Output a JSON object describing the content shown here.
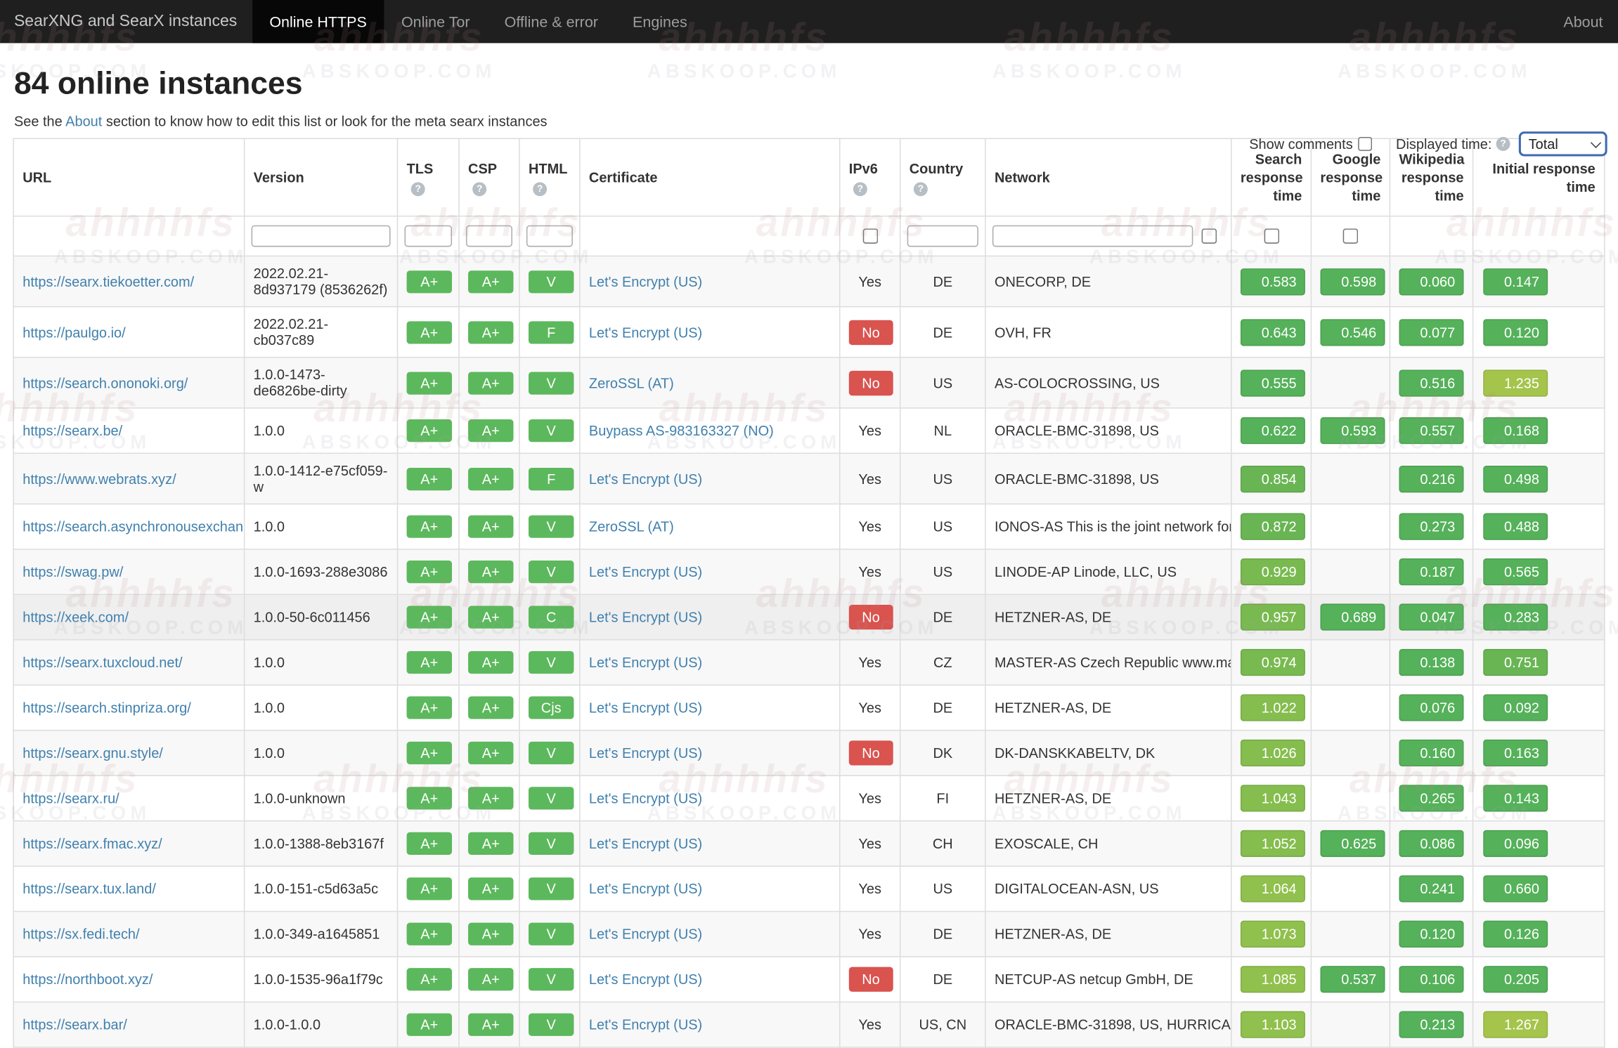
{
  "navbar": {
    "brand": "SearXNG and SearX instances",
    "tabs": [
      {
        "label": "Online HTTPS",
        "active": true
      },
      {
        "label": "Online Tor",
        "active": false
      },
      {
        "label": "Offline & error",
        "active": false
      },
      {
        "label": "Engines",
        "active": false
      }
    ],
    "about": "About"
  },
  "controls": {
    "show_comments_label": "Show comments",
    "displayed_time_label": "Displayed time:",
    "time_select_value": "Total"
  },
  "header": {
    "title": "84 online instances",
    "subtitle_pre": "See the ",
    "subtitle_link": "About",
    "subtitle_post": " section to know how to edit this list or look for the meta searx instances"
  },
  "watermark": {
    "line1": "ahhhhfs",
    "line2": "ABSKOOP.COM"
  },
  "table": {
    "columns": [
      {
        "label": "URL",
        "info": false
      },
      {
        "label": "Version",
        "info": false
      },
      {
        "label": "TLS",
        "info": true
      },
      {
        "label": "CSP",
        "info": true
      },
      {
        "label": "HTML",
        "info": true
      },
      {
        "label": "Certificate",
        "info": false
      },
      {
        "label": "IPv6",
        "info": true
      },
      {
        "label": "Country",
        "info": true
      },
      {
        "label": "Network",
        "info": false
      },
      {
        "label": "Search response time",
        "info": false
      },
      {
        "label": "Google response time",
        "info": false
      },
      {
        "label": "Wikipedia response time",
        "info": false
      },
      {
        "label": "Initial response time",
        "info": false
      }
    ],
    "status_colors": {
      "green": "#55b15a",
      "green_mid": "#69b554",
      "green_light": "#79ba50",
      "yellow_green": "#85bd4e",
      "yellow_green2": "#90c04d",
      "lime": "#a4c44b",
      "red": "#d9534f",
      "grade_green": "#5cb85c"
    },
    "rows": [
      {
        "url": "https://searx.tiekoetter.com/",
        "version": "2022.02.21-8d937179 (8536262f)",
        "tls": "A+",
        "csp": "A+",
        "html": "V",
        "cert": "Let's Encrypt (US)",
        "ipv6": "Yes",
        "country": "DE",
        "network": "ONECORP, DE",
        "times": {
          "search": {
            "v": "0.583",
            "c": "#55b15a"
          },
          "google": {
            "v": "0.598",
            "c": "#55b15a"
          },
          "wikipedia": {
            "v": "0.060",
            "c": "#55b15a"
          },
          "initial": {
            "v": "0.147",
            "c": "#55b15a"
          }
        }
      },
      {
        "url": "https://paulgo.io/",
        "version": "2022.02.21-cb037c89",
        "tls": "A+",
        "csp": "A+",
        "html": "F",
        "cert": "Let's Encrypt (US)",
        "ipv6": "No",
        "country": "DE",
        "network": "OVH, FR",
        "times": {
          "search": {
            "v": "0.643",
            "c": "#55b15a"
          },
          "google": {
            "v": "0.546",
            "c": "#55b15a"
          },
          "wikipedia": {
            "v": "0.077",
            "c": "#55b15a"
          },
          "initial": {
            "v": "0.120",
            "c": "#55b15a"
          }
        }
      },
      {
        "url": "https://search.ononoki.org/",
        "version": "1.0.0-1473-de6826be-dirty",
        "tls": "A+",
        "csp": "A+",
        "html": "V",
        "cert": "ZeroSSL (AT)",
        "ipv6": "No",
        "country": "US",
        "network": "AS-COLOCROSSING, US",
        "times": {
          "search": {
            "v": "0.555",
            "c": "#55b15a"
          },
          "wikipedia": {
            "v": "0.516",
            "c": "#55b15a"
          },
          "initial": {
            "v": "1.235",
            "c": "#a4c44b"
          }
        }
      },
      {
        "url": "https://searx.be/",
        "version": "1.0.0",
        "tls": "A+",
        "csp": "A+",
        "html": "V",
        "cert": "Buypass AS-983163327 (NO)",
        "ipv6": "Yes",
        "country": "NL",
        "network": "ORACLE-BMC-31898, US",
        "times": {
          "search": {
            "v": "0.622",
            "c": "#55b15a"
          },
          "google": {
            "v": "0.593",
            "c": "#55b15a"
          },
          "wikipedia": {
            "v": "0.557",
            "c": "#55b15a"
          },
          "initial": {
            "v": "0.168",
            "c": "#55b15a"
          }
        }
      },
      {
        "url": "https://www.webrats.xyz/",
        "version": "1.0.0-1412-e75cf059-w",
        "tls": "A+",
        "csp": "A+",
        "html": "F",
        "cert": "Let's Encrypt (US)",
        "ipv6": "Yes",
        "country": "US",
        "network": "ORACLE-BMC-31898, US",
        "times": {
          "search": {
            "v": "0.854",
            "c": "#69b554"
          },
          "wikipedia": {
            "v": "0.216",
            "c": "#55b15a"
          },
          "initial": {
            "v": "0.498",
            "c": "#55b15a"
          }
        }
      },
      {
        "url": "https://search.asynchronousexchan...",
        "version": "1.0.0",
        "tls": "A+",
        "csp": "A+",
        "html": "V",
        "cert": "ZeroSSL (AT)",
        "ipv6": "Yes",
        "country": "US",
        "network": "IONOS-AS This is the joint network for...",
        "times": {
          "search": {
            "v": "0.872",
            "c": "#69b554"
          },
          "wikipedia": {
            "v": "0.273",
            "c": "#55b15a"
          },
          "initial": {
            "v": "0.488",
            "c": "#55b15a"
          }
        }
      },
      {
        "url": "https://swag.pw/",
        "version": "1.0.0-1693-288e3086",
        "tls": "A+",
        "csp": "A+",
        "html": "V",
        "cert": "Let's Encrypt (US)",
        "ipv6": "Yes",
        "country": "US",
        "network": "LINODE-AP Linode, LLC, US",
        "times": {
          "search": {
            "v": "0.929",
            "c": "#79ba50"
          },
          "wikipedia": {
            "v": "0.187",
            "c": "#55b15a"
          },
          "initial": {
            "v": "0.565",
            "c": "#55b15a"
          }
        }
      },
      {
        "url": "https://xeek.com/",
        "version": "1.0.0-50-6c011456",
        "tls": "A+",
        "csp": "A+",
        "html": "C",
        "cert": "Let's Encrypt (US)",
        "ipv6": "No",
        "country": "DE",
        "network": "HETZNER-AS, DE",
        "highlight": true,
        "times": {
          "search": {
            "v": "0.957",
            "c": "#79ba50"
          },
          "google": {
            "v": "0.689",
            "c": "#55b15a"
          },
          "wikipedia": {
            "v": "0.047",
            "c": "#55b15a"
          },
          "initial": {
            "v": "0.283",
            "c": "#55b15a"
          }
        }
      },
      {
        "url": "https://searx.tuxcloud.net/",
        "version": "1.0.0",
        "tls": "A+",
        "csp": "A+",
        "html": "V",
        "cert": "Let's Encrypt (US)",
        "ipv6": "Yes",
        "country": "CZ",
        "network": "MASTER-AS Czech Republic www.ma...",
        "times": {
          "search": {
            "v": "0.974",
            "c": "#79ba50"
          },
          "wikipedia": {
            "v": "0.138",
            "c": "#55b15a"
          },
          "initial": {
            "v": "0.751",
            "c": "#69b554"
          }
        }
      },
      {
        "url": "https://search.stinpriza.org/",
        "version": "1.0.0",
        "tls": "A+",
        "csp": "A+",
        "html": "Cjs",
        "cert": "Let's Encrypt (US)",
        "ipv6": "Yes",
        "country": "DE",
        "network": "HETZNER-AS, DE",
        "times": {
          "search": {
            "v": "1.022",
            "c": "#85bd4e"
          },
          "wikipedia": {
            "v": "0.076",
            "c": "#55b15a"
          },
          "initial": {
            "v": "0.092",
            "c": "#55b15a"
          }
        }
      },
      {
        "url": "https://searx.gnu.style/",
        "version": "1.0.0",
        "tls": "A+",
        "csp": "A+",
        "html": "V",
        "cert": "Let's Encrypt (US)",
        "ipv6": "No",
        "country": "DK",
        "network": "DK-DANSKKABELTV, DK",
        "times": {
          "search": {
            "v": "1.026",
            "c": "#85bd4e"
          },
          "wikipedia": {
            "v": "0.160",
            "c": "#55b15a"
          },
          "initial": {
            "v": "0.163",
            "c": "#55b15a"
          }
        }
      },
      {
        "url": "https://searx.ru/",
        "version": "1.0.0-unknown",
        "tls": "A+",
        "csp": "A+",
        "html": "V",
        "cert": "Let's Encrypt (US)",
        "ipv6": "Yes",
        "country": "FI",
        "network": "HETZNER-AS, DE",
        "times": {
          "search": {
            "v": "1.043",
            "c": "#85bd4e"
          },
          "wikipedia": {
            "v": "0.265",
            "c": "#55b15a"
          },
          "initial": {
            "v": "0.143",
            "c": "#55b15a"
          }
        }
      },
      {
        "url": "https://searx.fmac.xyz/",
        "version": "1.0.0-1388-8eb3167f",
        "tls": "A+",
        "csp": "A+",
        "html": "V",
        "cert": "Let's Encrypt (US)",
        "ipv6": "Yes",
        "country": "CH",
        "network": "EXOSCALE, CH",
        "times": {
          "search": {
            "v": "1.052",
            "c": "#85bd4e"
          },
          "google": {
            "v": "0.625",
            "c": "#55b15a"
          },
          "wikipedia": {
            "v": "0.086",
            "c": "#55b15a"
          },
          "initial": {
            "v": "0.096",
            "c": "#55b15a"
          }
        }
      },
      {
        "url": "https://searx.tux.land/",
        "version": "1.0.0-151-c5d63a5c",
        "tls": "A+",
        "csp": "A+",
        "html": "V",
        "cert": "Let's Encrypt (US)",
        "ipv6": "Yes",
        "country": "US",
        "network": "DIGITALOCEAN-ASN, US",
        "times": {
          "search": {
            "v": "1.064",
            "c": "#90c04d"
          },
          "wikipedia": {
            "v": "0.241",
            "c": "#55b15a"
          },
          "initial": {
            "v": "0.660",
            "c": "#55b15a"
          }
        }
      },
      {
        "url": "https://sx.fedi.tech/",
        "version": "1.0.0-349-a1645851",
        "tls": "A+",
        "csp": "A+",
        "html": "V",
        "cert": "Let's Encrypt (US)",
        "ipv6": "Yes",
        "country": "DE",
        "network": "HETZNER-AS, DE",
        "times": {
          "search": {
            "v": "1.073",
            "c": "#90c04d"
          },
          "wikipedia": {
            "v": "0.120",
            "c": "#55b15a"
          },
          "initial": {
            "v": "0.126",
            "c": "#55b15a"
          }
        }
      },
      {
        "url": "https://northboot.xyz/",
        "version": "1.0.0-1535-96a1f79c",
        "tls": "A+",
        "csp": "A+",
        "html": "V",
        "cert": "Let's Encrypt (US)",
        "ipv6": "No",
        "country": "DE",
        "network": "NETCUP-AS netcup GmbH, DE",
        "times": {
          "search": {
            "v": "1.085",
            "c": "#90c04d"
          },
          "google": {
            "v": "0.537",
            "c": "#55b15a"
          },
          "wikipedia": {
            "v": "0.106",
            "c": "#55b15a"
          },
          "initial": {
            "v": "0.205",
            "c": "#55b15a"
          }
        }
      },
      {
        "url": "https://searx.bar/",
        "version": "1.0.0-1.0.0",
        "tls": "A+",
        "csp": "A+",
        "html": "V",
        "cert": "Let's Encrypt (US)",
        "ipv6": "Yes",
        "country": "US, CN",
        "network": "ORACLE-BMC-31898, US, HURRICA...",
        "times": {
          "search": {
            "v": "1.103",
            "c": "#90c04d"
          },
          "wikipedia": {
            "v": "0.213",
            "c": "#55b15a"
          },
          "initial": {
            "v": "1.267",
            "c": "#a4c44b"
          }
        }
      }
    ]
  }
}
